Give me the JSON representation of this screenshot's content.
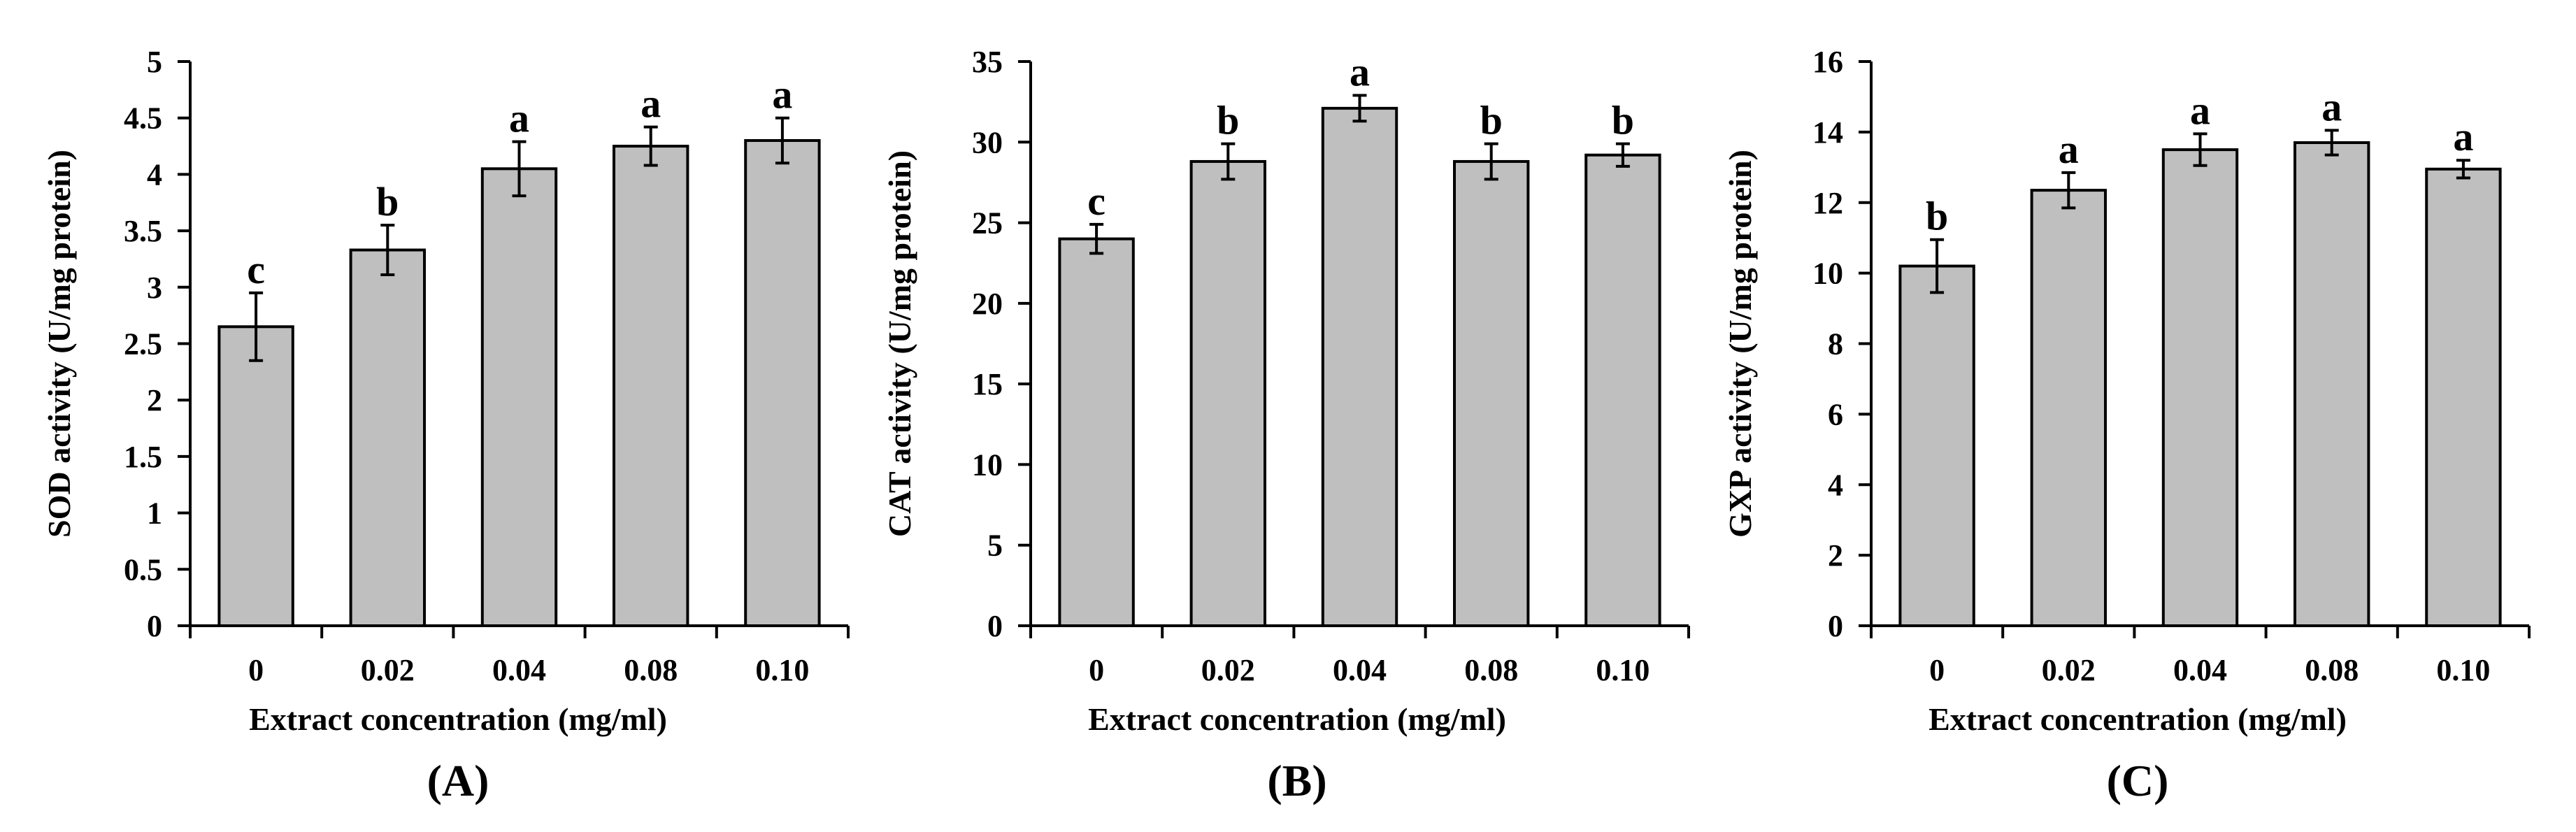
{
  "figure": {
    "background": "#ffffff",
    "bar_fill": "#bfbfbf",
    "axis_color": "#000000"
  },
  "chart_data": [
    {
      "type": "bar",
      "panel_label": "(A)",
      "title": "",
      "xlabel": "Extract concentration (mg/ml)",
      "ylabel": "SOD activity (U/mg protein)",
      "categories": [
        "0",
        "0.02",
        "0.04",
        "0.08",
        "0.10"
      ],
      "values": [
        2.65,
        3.33,
        4.05,
        4.25,
        4.3
      ],
      "errors": [
        0.3,
        0.22,
        0.24,
        0.17,
        0.2
      ],
      "significance": [
        "c",
        "b",
        "a",
        "a",
        "a"
      ],
      "ylim": [
        0,
        5
      ],
      "yticks": [
        0,
        0.5,
        1,
        1.5,
        2,
        2.5,
        3,
        3.5,
        4,
        4.5,
        5
      ],
      "ytick_labels": [
        "0",
        "0.5",
        "1",
        "1.5",
        "2",
        "2.5",
        "3",
        "3.5",
        "4",
        "4.5",
        "5"
      ],
      "grid": false
    },
    {
      "type": "bar",
      "panel_label": "(B)",
      "title": "",
      "xlabel": "Extract concentration (mg/ml)",
      "ylabel": "CAT activity (U/mg protein)",
      "categories": [
        "0",
        "0.02",
        "0.04",
        "0.08",
        "0.10"
      ],
      "values": [
        24.0,
        28.8,
        32.1,
        28.8,
        29.2
      ],
      "errors": [
        0.9,
        1.1,
        0.8,
        1.1,
        0.7
      ],
      "significance": [
        "c",
        "b",
        "a",
        "b",
        "b"
      ],
      "ylim": [
        0,
        35
      ],
      "yticks": [
        0,
        5,
        10,
        15,
        20,
        25,
        30,
        35
      ],
      "ytick_labels": [
        "0",
        "5",
        "10",
        "15",
        "20",
        "25",
        "30",
        "35"
      ],
      "grid": false
    },
    {
      "type": "bar",
      "panel_label": "(C)",
      "title": "",
      "xlabel": "Extract concentration (mg/ml)",
      "ylabel": "GXP activity (U/mg protein)",
      "categories": [
        "0",
        "0.02",
        "0.04",
        "0.08",
        "0.10"
      ],
      "values": [
        10.2,
        12.35,
        13.5,
        13.7,
        12.95
      ],
      "errors": [
        0.75,
        0.5,
        0.45,
        0.35,
        0.25
      ],
      "significance": [
        "b",
        "a",
        "a",
        "a",
        "a"
      ],
      "ylim": [
        0,
        16
      ],
      "yticks": [
        0,
        2,
        4,
        6,
        8,
        10,
        12,
        14,
        16
      ],
      "ytick_labels": [
        "0",
        "2",
        "4",
        "6",
        "8",
        "10",
        "12",
        "14",
        "16"
      ],
      "grid": false
    }
  ]
}
